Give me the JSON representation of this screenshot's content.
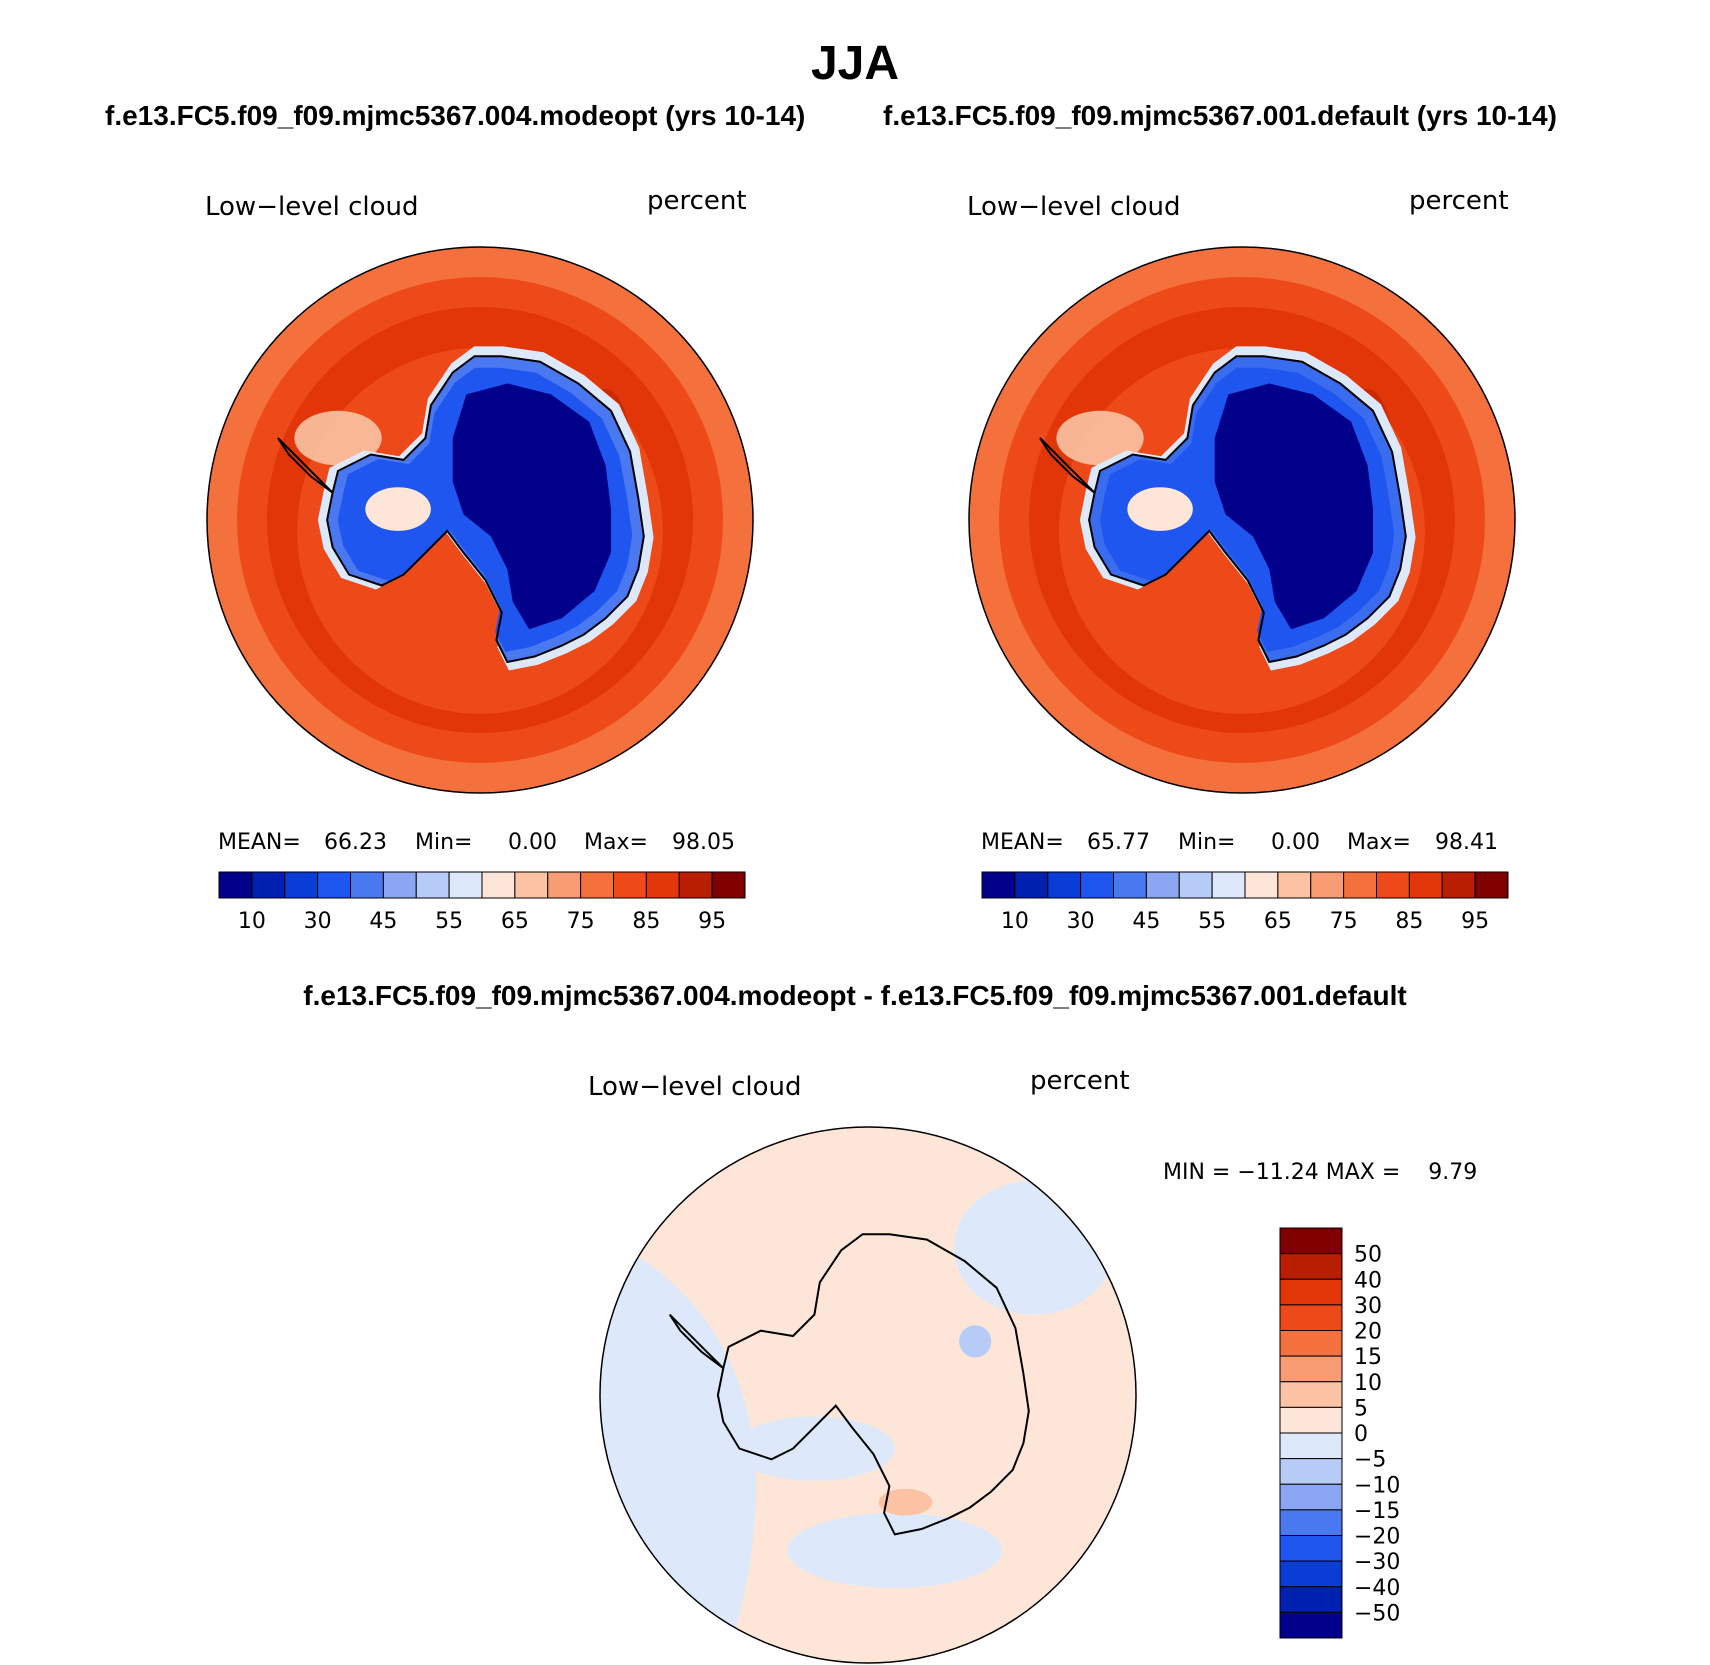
{
  "title": "JJA",
  "panels": [
    {
      "case": "f.e13.FC5.f09_f09.mjmc5367.004.modeopt (yrs 10-14)",
      "variable": "Low−level cloud",
      "units": "percent",
      "mean_label": "MEAN=",
      "mean": "66.23",
      "min_label": "Min=",
      "min": "0.00",
      "max_label": "Max=",
      "max": "98.05"
    },
    {
      "case": "f.e13.FC5.f09_f09.mjmc5367.001.default (yrs 10-14)",
      "variable": "Low−level cloud",
      "units": "percent",
      "mean_label": "MEAN=",
      "mean": "65.77",
      "min_label": "Min=",
      "min": "0.00",
      "max_label": "Max=",
      "max": "98.41"
    }
  ],
  "difference": {
    "title": "f.e13.FC5.f09_f09.mjmc5367.004.modeopt - f.e13.FC5.f09_f09.mjmc5367.001.default",
    "variable": "Low−level cloud",
    "units": "percent",
    "minmax_text": "MIN = −11.24 MAX =    9.79"
  },
  "chart_data": [
    {
      "type": "heatmap",
      "projection": "south-polar-stereographic",
      "title": "Low−level cloud",
      "units": "percent",
      "stats": {
        "mean": 66.23,
        "min": 0.0,
        "max": 98.05
      },
      "colorbar": {
        "orientation": "horizontal",
        "tick_labels": [
          "10",
          "30",
          "45",
          "55",
          "65",
          "75",
          "85",
          "95"
        ],
        "colors": [
          "#00008b",
          "#0020b0",
          "#0a3cd6",
          "#1f56f0",
          "#4a78f0",
          "#8aa6f2",
          "#b6ccf7",
          "#dde9fb",
          "#fde6d8",
          "#fbc3a4",
          "#f89c74",
          "#f4713e",
          "#ee4a19",
          "#e23608",
          "#b81e02",
          "#800000"
        ]
      }
    },
    {
      "type": "heatmap",
      "projection": "south-polar-stereographic",
      "title": "Low−level cloud",
      "units": "percent",
      "stats": {
        "mean": 65.77,
        "min": 0.0,
        "max": 98.41
      },
      "colorbar": {
        "orientation": "horizontal",
        "tick_labels": [
          "10",
          "30",
          "45",
          "55",
          "65",
          "75",
          "85",
          "95"
        ],
        "colors": [
          "#00008b",
          "#0020b0",
          "#0a3cd6",
          "#1f56f0",
          "#4a78f0",
          "#8aa6f2",
          "#b6ccf7",
          "#dde9fb",
          "#fde6d8",
          "#fbc3a4",
          "#f89c74",
          "#f4713e",
          "#ee4a19",
          "#e23608",
          "#b81e02",
          "#800000"
        ]
      }
    },
    {
      "type": "heatmap",
      "projection": "south-polar-stereographic",
      "title": "Low−level cloud",
      "units": "percent",
      "stats": {
        "min": -11.24,
        "max": 9.79
      },
      "colorbar": {
        "orientation": "vertical",
        "tick_labels": [
          "50",
          "40",
          "30",
          "20",
          "15",
          "10",
          "5",
          "0",
          "−5",
          "−10",
          "−15",
          "−20",
          "−30",
          "−40",
          "−50"
        ],
        "colors": [
          "#800000",
          "#b81e02",
          "#e23608",
          "#ee4a19",
          "#f4713e",
          "#f89c74",
          "#fbc3a4",
          "#fde6d8",
          "#dde9fb",
          "#b6ccf7",
          "#8aa6f2",
          "#4a78f0",
          "#1f56f0",
          "#0a3cd6",
          "#0020b0",
          "#00008b"
        ]
      }
    }
  ]
}
